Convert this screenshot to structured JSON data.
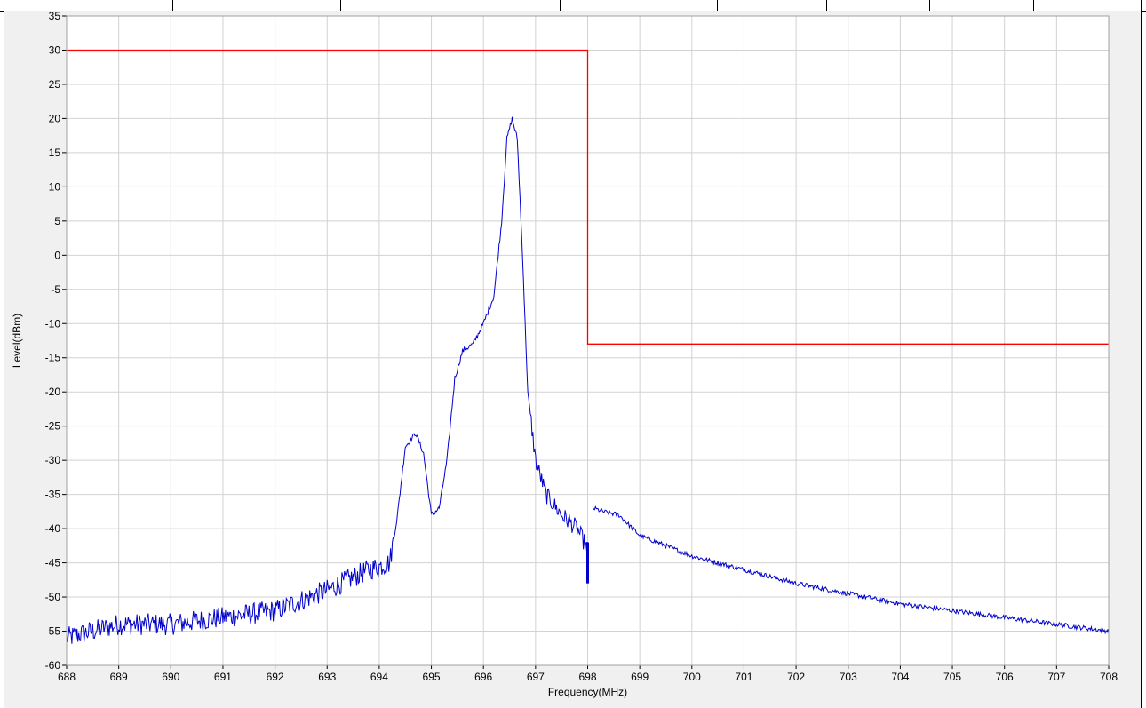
{
  "chart_data": {
    "type": "line",
    "xlabel": "Frequency(MHz)",
    "ylabel": "Level(dBm)",
    "xlim": [
      688,
      708
    ],
    "ylim": [
      -60,
      35
    ],
    "x_ticks": [
      "688",
      "689",
      "690",
      "691",
      "692",
      "693",
      "694",
      "695",
      "696",
      "697",
      "698",
      "699",
      "700",
      "701",
      "702",
      "703",
      "704",
      "705",
      "706",
      "707",
      "708"
    ],
    "y_ticks": [
      "35",
      "30",
      "25",
      "20",
      "15",
      "10",
      "5",
      "0",
      "-5",
      "-10",
      "-15",
      "-20",
      "-25",
      "-30",
      "-35",
      "-40",
      "-45",
      "-50",
      "-55",
      "-60"
    ],
    "grid": true,
    "series": [
      {
        "color": "#ff0000",
        "x": [
          688,
          698,
          698,
          708
        ],
        "y": [
          30,
          30,
          -13,
          -13
        ]
      },
      {
        "color": "#0000cc",
        "segments": [
          {
            "x": [
              688,
              689,
              690,
              691,
              692,
              693,
              693.8,
              694.2,
              694.35,
              694.5,
              694.7,
              694.85,
              695.0,
              695.15,
              695.3,
              695.45,
              695.6,
              695.8,
              696.0,
              696.2,
              696.35,
              696.45,
              696.55,
              696.65,
              696.75,
              696.85,
              697.0,
              697.2,
              697.5,
              697.8,
              698.0
            ],
            "y": [
              -56,
              -54,
              -54,
              -53,
              -52,
              -49,
              -46,
              -45,
              -38,
              -28,
              -26,
              -29,
              -38,
              -37,
              -30,
              -18,
              -14,
              -13,
              -10,
              -6,
              5,
              17,
              20,
              17,
              0,
              -20,
              -30,
              -35,
              -38,
              -40,
              -43
            ]
          },
          {
            "x": [
              698.1,
              698.3,
              698.6,
              699,
              700,
              701,
              702,
              703,
              704,
              705,
              706,
              707,
              708
            ],
            "y": [
              -37,
              -37.5,
              -38,
              -41,
              -44,
              -46,
              -48,
              -49.5,
              -51,
              -52,
              -53,
              -54,
              -55
            ]
          }
        ]
      }
    ]
  }
}
